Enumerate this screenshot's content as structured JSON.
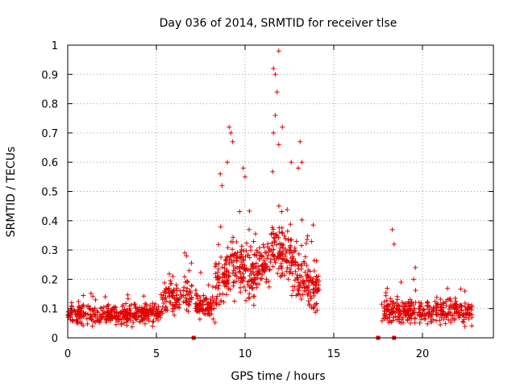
{
  "chart_data": {
    "type": "scatter",
    "title": "Day 036 of 2014, SRMTID for receiver tlse",
    "xlabel": "GPS time / hours",
    "ylabel": "SRMTID / TECUs",
    "xlim": [
      0,
      24
    ],
    "ylim": [
      0,
      1
    ],
    "xticks": [
      0,
      5,
      10,
      15,
      20
    ],
    "xtick_labels": [
      "0",
      "5",
      "10",
      "15",
      "20"
    ],
    "yticks": [
      0,
      0.1,
      0.2,
      0.3,
      0.4,
      0.5,
      0.6,
      0.7,
      0.8,
      0.9,
      1
    ],
    "ytick_labels": [
      "0",
      "0.1",
      "0.2",
      "0.3",
      "0.4",
      "0.5",
      "0.6",
      "0.7",
      "0.8",
      "0.9",
      "1"
    ],
    "grid": true,
    "series_color": "#e00000",
    "marker": "plus",
    "segments": [
      {
        "x_start": 0.0,
        "x_end": 5.3,
        "baseline": 0.08,
        "spread": 0.05,
        "count": 360
      },
      {
        "x_start": 5.3,
        "x_end": 7.0,
        "baseline": 0.14,
        "spread": 0.09,
        "count": 110
      },
      {
        "x_start": 7.2,
        "x_end": 8.3,
        "baseline": 0.11,
        "spread": 0.07,
        "count": 80
      },
      {
        "x_start": 8.3,
        "x_end": 14.2,
        "baseline": 0.24,
        "spread": 0.14,
        "count": 520
      },
      {
        "x_start": 17.7,
        "x_end": 22.8,
        "baseline": 0.09,
        "spread": 0.06,
        "count": 340
      }
    ],
    "notable_points": [
      {
        "x": 11.6,
        "y": 0.92
      },
      {
        "x": 11.7,
        "y": 0.9
      },
      {
        "x": 11.9,
        "y": 0.98
      },
      {
        "x": 11.8,
        "y": 0.84
      },
      {
        "x": 11.7,
        "y": 0.76
      },
      {
        "x": 11.6,
        "y": 0.7
      },
      {
        "x": 11.9,
        "y": 0.66
      },
      {
        "x": 12.1,
        "y": 0.72
      },
      {
        "x": 9.1,
        "y": 0.72
      },
      {
        "x": 9.2,
        "y": 0.7
      },
      {
        "x": 9.3,
        "y": 0.67
      },
      {
        "x": 9.0,
        "y": 0.6
      },
      {
        "x": 8.6,
        "y": 0.56
      },
      {
        "x": 8.7,
        "y": 0.52
      },
      {
        "x": 9.9,
        "y": 0.58
      },
      {
        "x": 10.0,
        "y": 0.55
      },
      {
        "x": 13.1,
        "y": 0.67
      },
      {
        "x": 13.2,
        "y": 0.6
      },
      {
        "x": 13.0,
        "y": 0.58
      },
      {
        "x": 12.6,
        "y": 0.6
      },
      {
        "x": 18.3,
        "y": 0.37
      },
      {
        "x": 18.4,
        "y": 0.32
      },
      {
        "x": 19.6,
        "y": 0.24
      },
      {
        "x": 19.5,
        "y": 0.2
      },
      {
        "x": 6.6,
        "y": 0.29
      },
      {
        "x": 6.7,
        "y": 0.28
      }
    ],
    "gap_markers": [
      {
        "x": 7.1,
        "y": 0
      },
      {
        "x": 17.5,
        "y": 0
      },
      {
        "x": 18.4,
        "y": 0
      }
    ]
  }
}
